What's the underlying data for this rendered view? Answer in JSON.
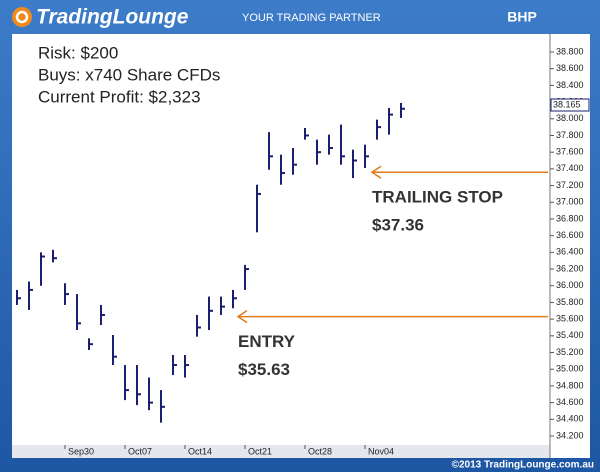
{
  "branding": {
    "logo": "TradingLounge",
    "tagline": "YOUR TRADING PARTNER",
    "footer": "©2013 TradingLounge.com.au"
  },
  "chart_data": {
    "type": "hlc",
    "title": "BHP",
    "notes": [
      "Risk: $200",
      "Buys: x740 Share CFDs",
      "Current Profit: $2,323"
    ],
    "categories": [
      null,
      null,
      null,
      null,
      "Sep30",
      null,
      null,
      null,
      null,
      "Oct07",
      null,
      null,
      null,
      null,
      "Oct14",
      null,
      null,
      null,
      null,
      "Oct21",
      null,
      null,
      null,
      null,
      "Oct28",
      null,
      null,
      null,
      null,
      "Nov04",
      null,
      null,
      null
    ],
    "series": [
      {
        "color": "#1a1f6e",
        "high": [
          35.95,
          36.05,
          36.4,
          36.43,
          36.03,
          35.9,
          35.37,
          35.77,
          35.41,
          35.05,
          35.05,
          34.9,
          34.75,
          35.17,
          35.17,
          35.65,
          35.87,
          35.87,
          35.95,
          36.25,
          37.21,
          37.84,
          37.57,
          37.65,
          37.89,
          37.75,
          37.81,
          37.93,
          37.63,
          37.69,
          37.99,
          38.13,
          38.19
        ],
        "low": [
          35.77,
          35.71,
          36.0,
          36.28,
          35.77,
          35.47,
          35.23,
          35.53,
          35.05,
          34.63,
          34.57,
          34.51,
          34.36,
          34.93,
          34.9,
          35.39,
          35.47,
          35.65,
          35.73,
          35.95,
          36.64,
          37.39,
          37.21,
          37.33,
          37.75,
          37.45,
          37.57,
          37.45,
          37.29,
          37.41,
          37.75,
          37.81,
          38.01
        ],
        "close": [
          35.85,
          35.95,
          36.35,
          36.33,
          35.9,
          35.55,
          35.3,
          35.65,
          35.15,
          34.75,
          34.7,
          34.6,
          34.55,
          35.05,
          35.05,
          35.5,
          35.7,
          35.75,
          35.85,
          36.2,
          37.1,
          37.55,
          37.35,
          37.45,
          37.8,
          37.6,
          37.65,
          37.55,
          37.5,
          37.55,
          37.9,
          38.05,
          38.12
        ]
      }
    ],
    "last_price": 38.165,
    "annotations": [
      {
        "text": "TRAILING STOP",
        "value": 37.36,
        "value_label": "$37.36",
        "color": "#e07b1a"
      },
      {
        "text": "ENTRY",
        "value": 35.63,
        "value_label": "$35.63",
        "color": "#e07b1a"
      }
    ],
    "ylim": [
      34.06,
      38.94
    ],
    "yticks": [
      {
        "value": 34.2,
        "label": "34.200"
      },
      {
        "value": 34.4,
        "label": "34.400"
      },
      {
        "value": 34.6,
        "label": "34.600"
      },
      {
        "value": 34.8,
        "label": "34.800"
      },
      {
        "value": 35.0,
        "label": "35.000"
      },
      {
        "value": 35.2,
        "label": "35.200"
      },
      {
        "value": 35.4,
        "label": "35.400"
      },
      {
        "value": 35.6,
        "label": "35.600"
      },
      {
        "value": 35.8,
        "label": "35.800"
      },
      {
        "value": 36.0,
        "label": "36.000"
      },
      {
        "value": 36.2,
        "label": "36.200"
      },
      {
        "value": 36.4,
        "label": "36.400"
      },
      {
        "value": 36.6,
        "label": "36.600"
      },
      {
        "value": 36.8,
        "label": "36.800"
      },
      {
        "value": 37.0,
        "label": "37.000"
      },
      {
        "value": 37.2,
        "label": "37.200"
      },
      {
        "value": 37.4,
        "label": "37.400"
      },
      {
        "value": 37.6,
        "label": "37.600"
      },
      {
        "value": 37.8,
        "label": "37.800"
      },
      {
        "value": 38.0,
        "label": "38.000"
      },
      {
        "value": 38.2,
        "label": "38.200"
      },
      {
        "value": 38.4,
        "label": "38.400"
      },
      {
        "value": 38.6,
        "label": "38.600"
      },
      {
        "value": 38.8,
        "label": "38.800"
      }
    ]
  }
}
